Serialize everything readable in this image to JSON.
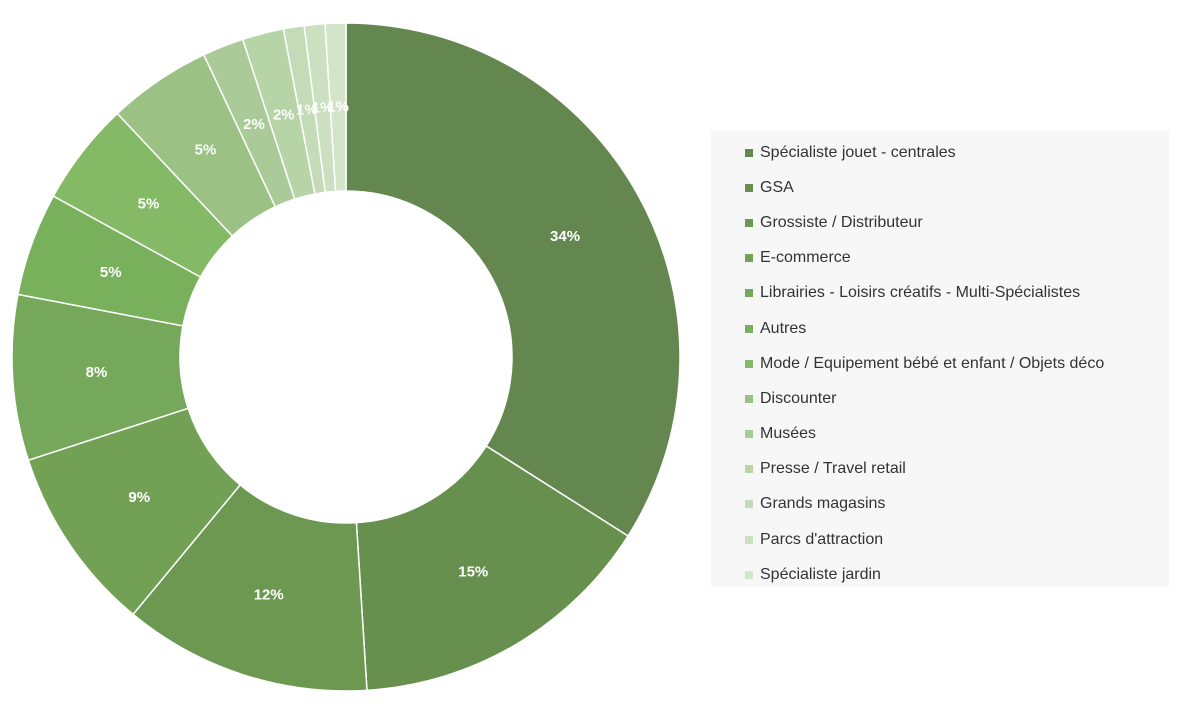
{
  "chart_data": {
    "type": "doughnut",
    "categories": [
      "Spécialiste jouet - centrales",
      "GSA",
      "Grossiste / Distributeur",
      "E-commerce",
      "Librairies - Loisirs créatifs - Multi-Spécialistes",
      "Autres",
      "Mode / Equipement bébé et enfant / Objets déco",
      "Discounter",
      "Musées",
      "Presse / Travel retail",
      "Grands magasins",
      "Parcs d'attraction",
      "Spécialiste jardin"
    ],
    "values": [
      34,
      15,
      12,
      9,
      8,
      5,
      5,
      5,
      2,
      2,
      1,
      1,
      1
    ],
    "data_labels": [
      "34%",
      "15%",
      "12%",
      "9%",
      "8%",
      "5%",
      "5%",
      "5%",
      "2%",
      "2%",
      "1%",
      "1%",
      "1%"
    ],
    "colors": [
      "#64874f",
      "#67904f",
      "#6c9852",
      "#72a155",
      "#75a85a",
      "#78b05c",
      "#84b966",
      "#9bc184",
      "#aacb97",
      "#b7d4a7",
      "#c3dbb6",
      "#cbe0c0",
      "#d3e5c9"
    ],
    "legend_position": "right",
    "title": ""
  }
}
